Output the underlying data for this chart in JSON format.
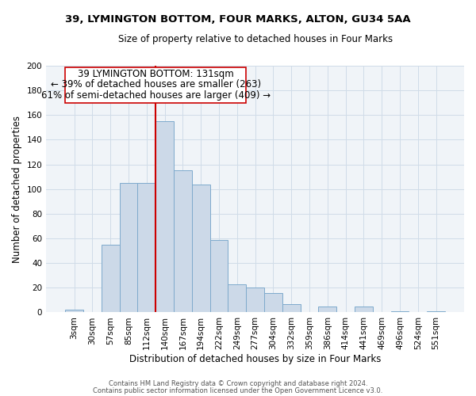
{
  "title": "39, LYMINGTON BOTTOM, FOUR MARKS, ALTON, GU34 5AA",
  "subtitle": "Size of property relative to detached houses in Four Marks",
  "xlabel": "Distribution of detached houses by size in Four Marks",
  "ylabel": "Number of detached properties",
  "bar_labels": [
    "3sqm",
    "30sqm",
    "57sqm",
    "85sqm",
    "112sqm",
    "140sqm",
    "167sqm",
    "194sqm",
    "222sqm",
    "249sqm",
    "277sqm",
    "304sqm",
    "332sqm",
    "359sqm",
    "386sqm",
    "414sqm",
    "441sqm",
    "469sqm",
    "496sqm",
    "524sqm",
    "551sqm"
  ],
  "bar_values": [
    2,
    0,
    55,
    105,
    105,
    155,
    115,
    104,
    59,
    23,
    20,
    16,
    7,
    0,
    5,
    0,
    5,
    0,
    1,
    0,
    1
  ],
  "bar_color": "#ccd9e8",
  "bar_edge_color": "#7eaacc",
  "annotation_line1": "39 LYMINGTON BOTTOM: 131sqm",
  "annotation_line2": "← 39% of detached houses are smaller (263)",
  "annotation_line3": "61% of semi-detached houses are larger (409) →",
  "vline_color": "#cc0000",
  "ylim": [
    0,
    200
  ],
  "yticks": [
    0,
    20,
    40,
    60,
    80,
    100,
    120,
    140,
    160,
    180,
    200
  ],
  "footer1": "Contains HM Land Registry data © Crown copyright and database right 2024.",
  "footer2": "Contains public sector information licensed under the Open Government Licence v3.0.",
  "grid_color": "#d0dce8",
  "bg_color": "#f0f4f8"
}
